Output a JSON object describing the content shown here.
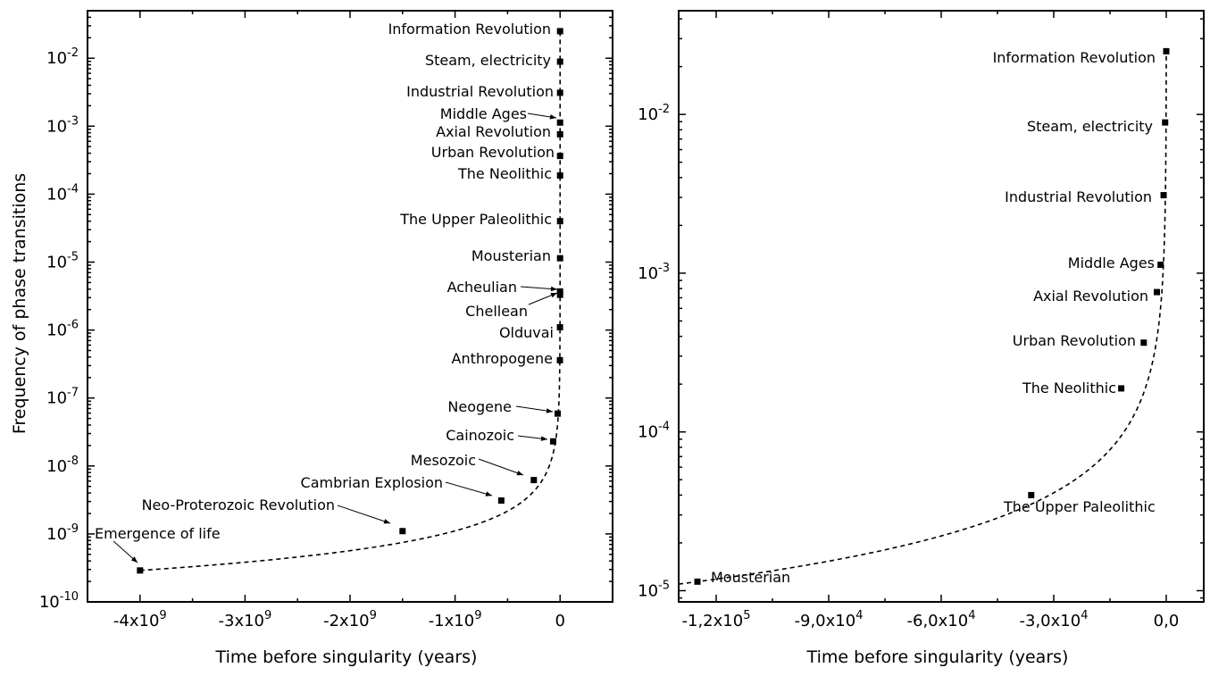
{
  "chart_data": [
    {
      "type": "scatter",
      "xlabel": "Time before singularity (years)",
      "ylabel": "Frequency of phase transitions",
      "yscale": "log",
      "xlim": [
        -4500000000.0,
        500000000.0
      ],
      "ylim": [
        1e-10,
        0.05
      ],
      "x_ticks": [
        {
          "value": -4000000000.0,
          "base": "-4x10",
          "exp": "9"
        },
        {
          "value": -3000000000.0,
          "base": "-3x10",
          "exp": "9"
        },
        {
          "value": -2000000000.0,
          "base": "-2x10",
          "exp": "9"
        },
        {
          "value": -1000000000.0,
          "base": "-1x10",
          "exp": "9"
        },
        {
          "value": 0,
          "base": "0",
          "exp": ""
        }
      ],
      "y_ticks": [
        {
          "value": 1e-10,
          "base": "10",
          "exp": "-10"
        },
        {
          "value": 1e-09,
          "base": "10",
          "exp": "-9"
        },
        {
          "value": 1e-08,
          "base": "10",
          "exp": "-8"
        },
        {
          "value": 1e-07,
          "base": "10",
          "exp": "-7"
        },
        {
          "value": 1e-06,
          "base": "10",
          "exp": "-6"
        },
        {
          "value": 1e-05,
          "base": "10",
          "exp": "-5"
        },
        {
          "value": 0.0001,
          "base": "10",
          "exp": "-4"
        },
        {
          "value": 0.001,
          "base": "10",
          "exp": "-3"
        },
        {
          "value": 0.01,
          "base": "10",
          "exp": "-2"
        }
      ],
      "fit_curve": "dashed",
      "points": [
        {
          "label": "Emergence of life",
          "x": -4000000000.0,
          "y": 2.9e-10,
          "arrow": true
        },
        {
          "label": "Neo-Proterozoic Revolution",
          "x": -1500000000.0,
          "y": 1.1e-09,
          "arrow": true
        },
        {
          "label": "Cambrian Explosion",
          "x": -560000000.0,
          "y": 3.1e-09,
          "arrow": true
        },
        {
          "label": "Mesozoic",
          "x": -250000000.0,
          "y": 6.2e-09,
          "arrow": true
        },
        {
          "label": "Cainozoic",
          "x": -66000000.0,
          "y": 2.3e-08,
          "arrow": true
        },
        {
          "label": "Neogene",
          "x": -23000000.0,
          "y": 5.9e-08,
          "arrow": true
        },
        {
          "label": "Anthropogene",
          "x": -1600000.0,
          "y": 3.6e-07,
          "arrow": false
        },
        {
          "label": "Olduvai",
          "x": -900000.0,
          "y": 1.1e-06,
          "arrow": false
        },
        {
          "label": "Chellean",
          "x": -300000.0,
          "y": 3.3e-06,
          "arrow": true
        },
        {
          "label": "Acheulian",
          "x": -250000.0,
          "y": 3.7e-06,
          "arrow": true
        },
        {
          "label": "Mousterian",
          "x": -125000.0,
          "y": 1.14e-05,
          "arrow": false
        },
        {
          "label": "The Upper Paleolithic",
          "x": -36000.0,
          "y": 4e-05,
          "arrow": false
        },
        {
          "label": "The Neolithic",
          "x": -12000.0,
          "y": 0.000188,
          "arrow": false
        },
        {
          "label": "Urban Revolution",
          "x": -6000.0,
          "y": 0.000365,
          "arrow": false
        },
        {
          "label": "Axial Revolution",
          "x": -2500.0,
          "y": 0.00076,
          "arrow": false
        },
        {
          "label": "Middle Ages",
          "x": -1500.0,
          "y": 0.00113,
          "arrow": true
        },
        {
          "label": "Industrial Revolution",
          "x": -700,
          "y": 0.0031,
          "arrow": false
        },
        {
          "label": "Steam, electricity",
          "x": -300,
          "y": 0.0089,
          "arrow": false
        },
        {
          "label": "Information Revolution",
          "x": 0,
          "y": 0.025,
          "arrow": false
        }
      ]
    },
    {
      "type": "scatter",
      "xlabel": "Time before singularity (years)",
      "ylabel": "",
      "yscale": "log",
      "xlim": [
        -130000.0,
        10000.0
      ],
      "ylim": [
        8.5e-06,
        0.045
      ],
      "x_ticks": [
        {
          "value": -120000.0,
          "base": "-1,2x10",
          "exp": "5"
        },
        {
          "value": -90000.0,
          "base": "-9,0x10",
          "exp": "4"
        },
        {
          "value": -60000.0,
          "base": "-6,0x10",
          "exp": "4"
        },
        {
          "value": -30000.0,
          "base": "-3,0x10",
          "exp": "4"
        },
        {
          "value": 0,
          "base": "0,0",
          "exp": ""
        }
      ],
      "y_ticks": [
        {
          "value": 1e-05,
          "base": "10",
          "exp": "-5"
        },
        {
          "value": 0.0001,
          "base": "10",
          "exp": "-4"
        },
        {
          "value": 0.001,
          "base": "10",
          "exp": "-3"
        },
        {
          "value": 0.01,
          "base": "10",
          "exp": "-2"
        }
      ],
      "fit_curve": "dashed",
      "points": [
        {
          "label": "Mousterian",
          "x": -125000.0,
          "y": 1.14e-05
        },
        {
          "label": "The Upper Paleolithic",
          "x": -36000.0,
          "y": 4e-05
        },
        {
          "label": "The Neolithic",
          "x": -12000.0,
          "y": 0.000188
        },
        {
          "label": "Urban Revolution",
          "x": -6000.0,
          "y": 0.000365
        },
        {
          "label": "Axial Revolution",
          "x": -2500.0,
          "y": 0.00076
        },
        {
          "label": "Middle Ages",
          "x": -1500.0,
          "y": 0.00113
        },
        {
          "label": "Industrial Revolution",
          "x": -700,
          "y": 0.0031
        },
        {
          "label": "Steam, electricity",
          "x": -300,
          "y": 0.0089
        },
        {
          "label": "Information Revolution",
          "x": 0,
          "y": 0.025
        }
      ]
    }
  ]
}
